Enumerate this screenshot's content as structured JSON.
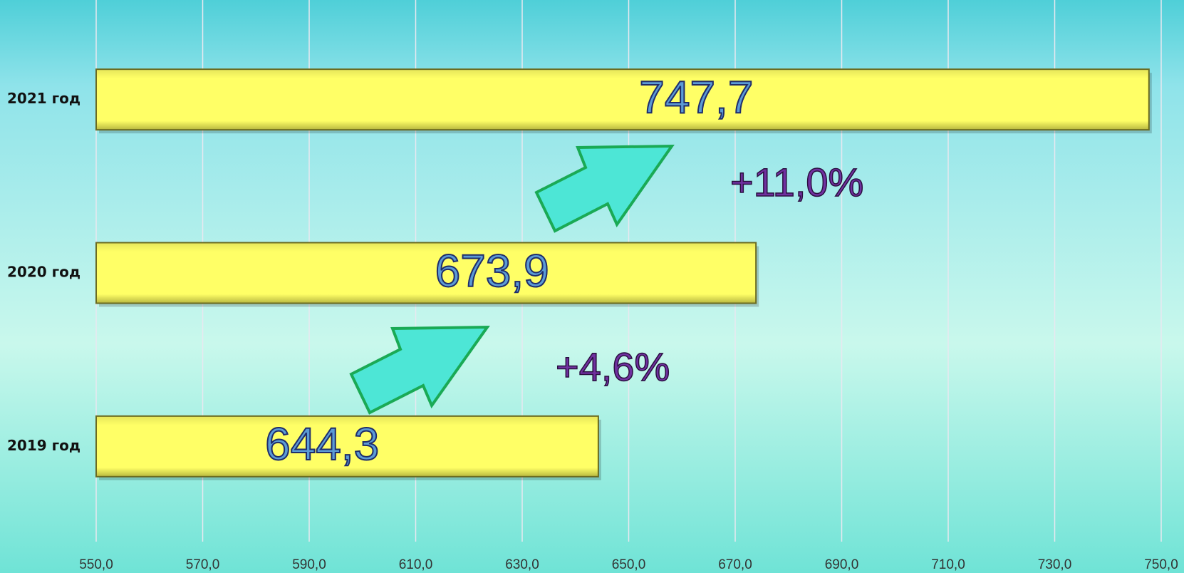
{
  "chart_data": {
    "type": "bar",
    "orientation": "horizontal",
    "categories": [
      "2019 год",
      "2020 год",
      "2021 год"
    ],
    "values": [
      644.3,
      673.9,
      747.7
    ],
    "value_labels": [
      "644,3",
      "673,9",
      "747,7"
    ],
    "color": "#ffff66",
    "xlim": [
      550,
      750
    ],
    "xticks": [
      {
        "value": 550,
        "label": "550,0"
      },
      {
        "value": 570,
        "label": "570,0"
      },
      {
        "value": 590,
        "label": "590,0"
      },
      {
        "value": 610,
        "label": "610,0"
      },
      {
        "value": 630,
        "label": "630,0"
      },
      {
        "value": 650,
        "label": "650,0"
      },
      {
        "value": 670,
        "label": "670,0"
      },
      {
        "value": 690,
        "label": "690,0"
      },
      {
        "value": 710,
        "label": "710,0"
      },
      {
        "value": 730,
        "label": "730,0"
      },
      {
        "value": 750,
        "label": "750,0"
      }
    ],
    "grid": true,
    "annotations": [
      "+4,6%",
      "+11,0%"
    ]
  }
}
